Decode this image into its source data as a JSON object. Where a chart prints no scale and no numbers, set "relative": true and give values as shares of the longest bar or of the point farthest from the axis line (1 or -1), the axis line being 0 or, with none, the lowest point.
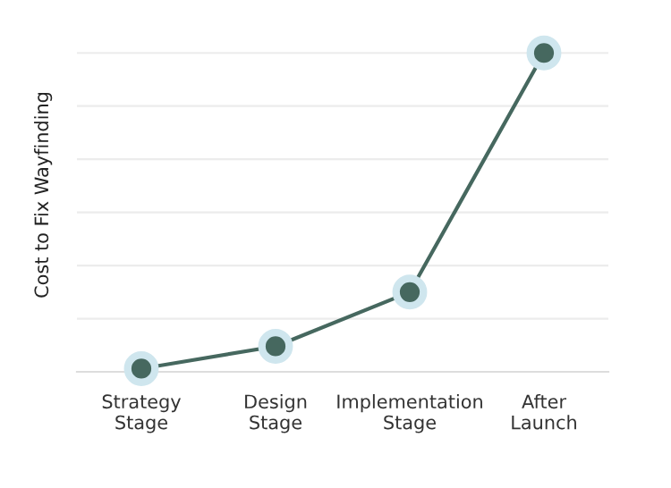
{
  "chart_data": {
    "type": "line",
    "ylabel": "Cost to Fix Wayfinding",
    "categories": [
      "Strategy\nStage",
      "Design\nStage",
      "Implementation\nStage",
      "After\nLaunch"
    ],
    "series": [
      {
        "color": "#46685f",
        "values": [
          0.01,
          0.08,
          0.25,
          1.0
        ]
      }
    ],
    "relative": true,
    "grid": "y",
    "marker": "circle",
    "line_style": "solid",
    "legend": false
  }
}
